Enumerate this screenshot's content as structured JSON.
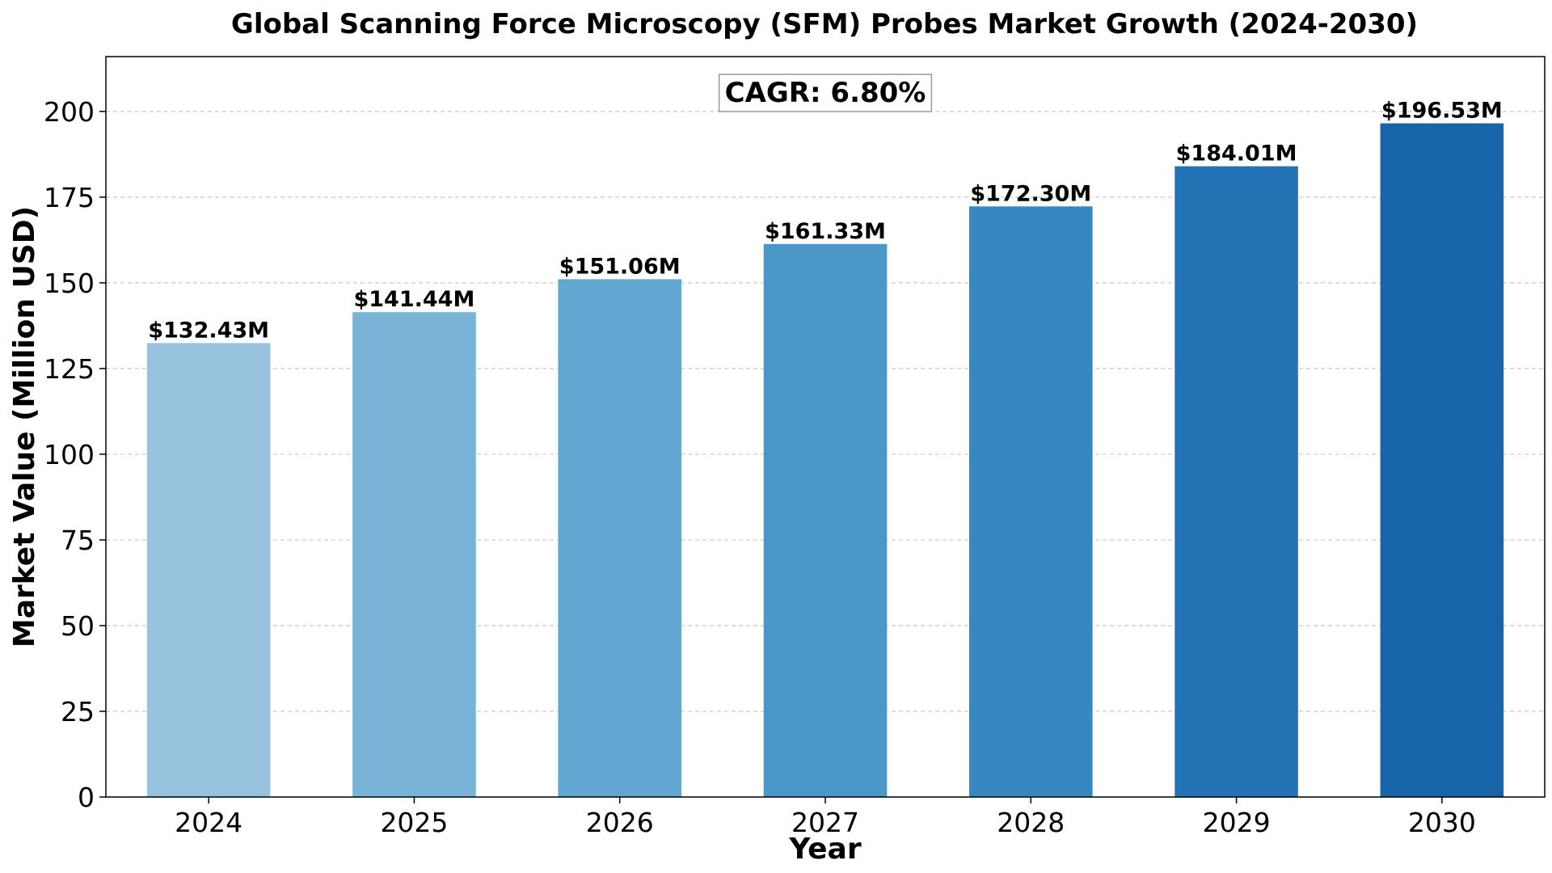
{
  "chart_data": {
    "type": "bar",
    "title": "Global Scanning Force Microscopy (SFM) Probes Market Growth (2024-2030)",
    "xlabel": "Year",
    "ylabel": "Market Value (Million USD)",
    "categories": [
      "2024",
      "2025",
      "2026",
      "2027",
      "2028",
      "2029",
      "2030"
    ],
    "values": [
      132.43,
      141.44,
      151.06,
      161.33,
      172.3,
      184.01,
      196.53
    ],
    "data_labels": [
      "$132.43M",
      "$141.44M",
      "$151.06M",
      "$161.33M",
      "$172.30M",
      "$184.01M",
      "$196.53M"
    ],
    "ylim": [
      0,
      216
    ],
    "yticks": [
      0,
      25,
      50,
      75,
      100,
      125,
      150,
      175,
      200
    ],
    "ytick_labels": [
      "0",
      "25",
      "50",
      "75",
      "100",
      "125",
      "150",
      "175",
      "200"
    ],
    "grid": "horizontal dashed",
    "bar_colors": [
      "#97c3df",
      "#79b4d8",
      "#61a7d2",
      "#4a98c9",
      "#3787c0",
      "#2473b5",
      "#1864a9"
    ],
    "annotation": "CAGR: 6.80%"
  }
}
